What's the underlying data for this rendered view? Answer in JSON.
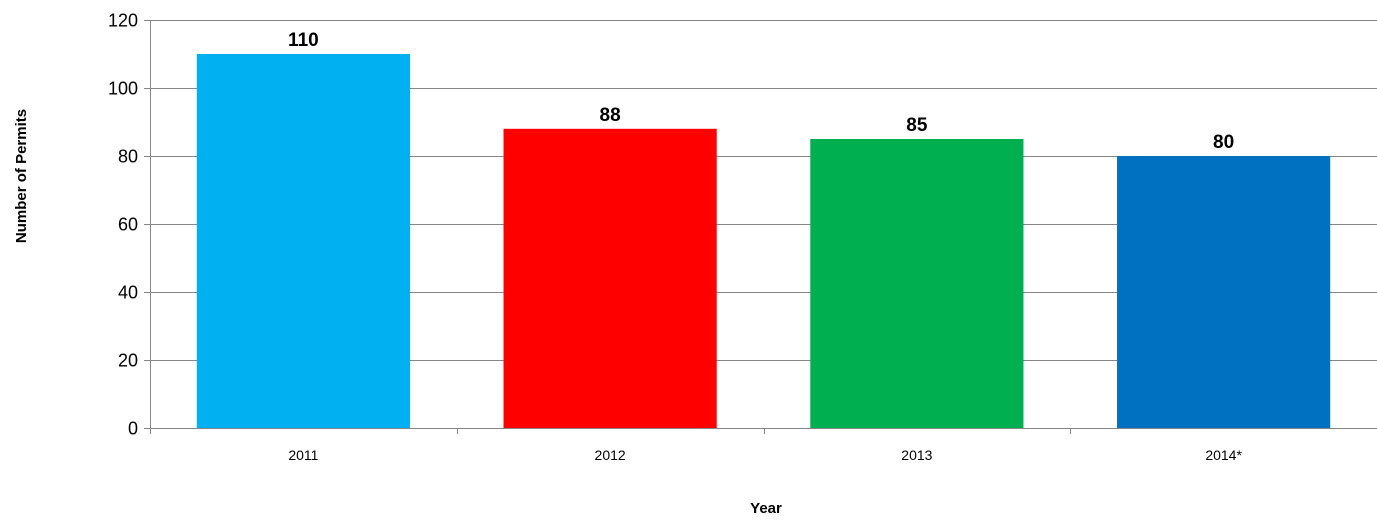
{
  "chart_data": {
    "type": "bar",
    "title": "",
    "xlabel": "Year",
    "ylabel": "Number of Permits",
    "categories": [
      "2011",
      "2012",
      "2013",
      "2014*"
    ],
    "values": [
      110,
      88,
      85,
      80
    ],
    "data_labels": [
      "110",
      "88",
      "85",
      "80"
    ],
    "bar_colors": [
      "#00b0f0",
      "#ff0000",
      "#00b050",
      "#0070c0"
    ],
    "ylim": [
      0,
      120
    ],
    "yticks": [
      0,
      20,
      40,
      60,
      80,
      100,
      120
    ],
    "grid": true,
    "legend": "none"
  }
}
